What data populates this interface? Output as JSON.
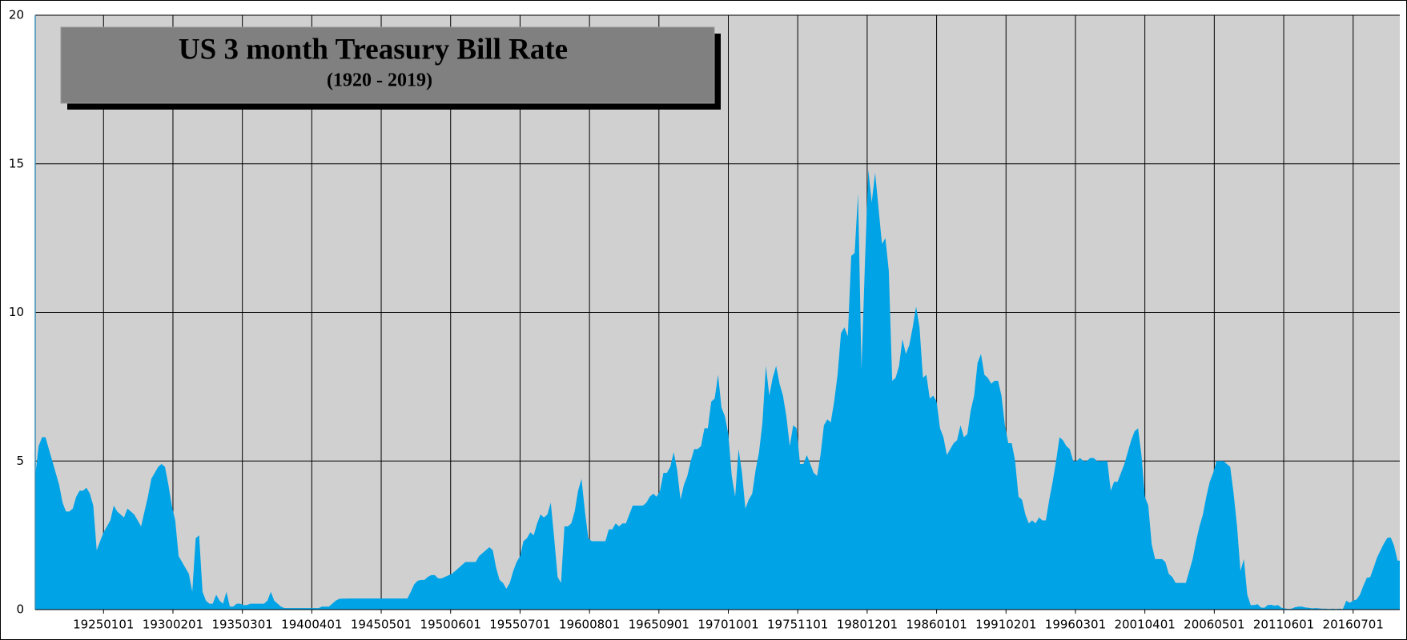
{
  "chart_data": {
    "type": "area",
    "title": "US 3 month Treasury Bill Rate",
    "subtitle": "(1920 - 2019)",
    "color": "#00a3e6",
    "grid": true,
    "xlim": [
      "19200101",
      "20191201"
    ],
    "xticks": [
      "19250101",
      "19300201",
      "19350301",
      "19400401",
      "19450501",
      "19500601",
      "19550701",
      "19600801",
      "19650901",
      "19701001",
      "19751101",
      "19801201",
      "19860101",
      "19910201",
      "19960301",
      "20010401",
      "20060501",
      "20110601",
      "20160701"
    ],
    "ylim": [
      0,
      20
    ],
    "yticks": [
      0,
      5,
      10,
      15,
      20
    ],
    "x": [
      "19200101",
      "19200401",
      "19200701",
      "19201001",
      "19210101",
      "19210401",
      "19210701",
      "19211001",
      "19220101",
      "19220401",
      "19220701",
      "19221001",
      "19230101",
      "19230401",
      "19230701",
      "19231001",
      "19240101",
      "19240401",
      "19240701",
      "19241001",
      "19250101",
      "19250401",
      "19250701",
      "19251001",
      "19260101",
      "19260401",
      "19260701",
      "19261001",
      "19270101",
      "19270401",
      "19270701",
      "19271001",
      "19280101",
      "19280401",
      "19280701",
      "19281001",
      "19290101",
      "19290401",
      "19290701",
      "19291001",
      "19300101",
      "19300401",
      "19300701",
      "19301001",
      "19310101",
      "19310401",
      "19310701",
      "19311001",
      "19320101",
      "19320401",
      "19320701",
      "19321001",
      "19330101",
      "19330401",
      "19330701",
      "19331001",
      "19340101",
      "19340401",
      "19340701",
      "19341001",
      "19350101",
      "19350401",
      "19350701",
      "19351001",
      "19360101",
      "19360401",
      "19360701",
      "19361001",
      "19370101",
      "19370401",
      "19370701",
      "19371001",
      "19380101",
      "19380401",
      "19380701",
      "19381001",
      "19390101",
      "19390401",
      "19390701",
      "19391001",
      "19400101",
      "19400401",
      "19400701",
      "19401001",
      "19410101",
      "19410401",
      "19410701",
      "19411001",
      "19420101",
      "19420401",
      "19420701",
      "19421001",
      "19430101",
      "19430401",
      "19430701",
      "19431001",
      "19440101",
      "19440401",
      "19440701",
      "19441001",
      "19450101",
      "19450401",
      "19450701",
      "19451001",
      "19460101",
      "19460401",
      "19460701",
      "19461001",
      "19470101",
      "19470401",
      "19470701",
      "19471001",
      "19480101",
      "19480401",
      "19480701",
      "19481001",
      "19490101",
      "19490401",
      "19490701",
      "19491001",
      "19500101",
      "19500401",
      "19500701",
      "19501001",
      "19510101",
      "19510401",
      "19510701",
      "19511001",
      "19520101",
      "19520401",
      "19520701",
      "19521001",
      "19530101",
      "19530401",
      "19530701",
      "19531001",
      "19540101",
      "19540401",
      "19540701",
      "19541001",
      "19550101",
      "19550401",
      "19550701",
      "19551001",
      "19560101",
      "19560401",
      "19560701",
      "19561001",
      "19570101",
      "19570401",
      "19570701",
      "19571001",
      "19580101",
      "19580401",
      "19580701",
      "19581001",
      "19590101",
      "19590401",
      "19590701",
      "19591001",
      "19600101",
      "19600401",
      "19600701",
      "19601001",
      "19610101",
      "19610401",
      "19610701",
      "19611001",
      "19620101",
      "19620401",
      "19620701",
      "19621001",
      "19630101",
      "19630401",
      "19630701",
      "19631001",
      "19640101",
      "19640401",
      "19640701",
      "19641001",
      "19650101",
      "19650401",
      "19650701",
      "19651001",
      "19660101",
      "19660401",
      "19660701",
      "19661001",
      "19670101",
      "19670401",
      "19670701",
      "19671001",
      "19680101",
      "19680401",
      "19680701",
      "19681001",
      "19690101",
      "19690401",
      "19690701",
      "19691001",
      "19700101",
      "19700401",
      "19700701",
      "19701001",
      "19710101",
      "19710401",
      "19710701",
      "19711001",
      "19720101",
      "19720401",
      "19720701",
      "19721001",
      "19730101",
      "19730401",
      "19730701",
      "19731001",
      "19740101",
      "19740401",
      "19740701",
      "19741001",
      "19750101",
      "19750401",
      "19750701",
      "19751001",
      "19760101",
      "19760401",
      "19760701",
      "19761001",
      "19770101",
      "19770401",
      "19770701",
      "19771001",
      "19780101",
      "19780401",
      "19780701",
      "19781001",
      "19790101",
      "19790401",
      "19790701",
      "19791001",
      "19800101",
      "19800401",
      "19800701",
      "19801001",
      "19810101",
      "19810401",
      "19810701",
      "19811001",
      "19820101",
      "19820401",
      "19820701",
      "19821001",
      "19830101",
      "19830401",
      "19830701",
      "19831001",
      "19840101",
      "19840401",
      "19840701",
      "19841001",
      "19850101",
      "19850401",
      "19850701",
      "19851001",
      "19860101",
      "19860401",
      "19860701",
      "19861001",
      "19870101",
      "19870401",
      "19870701",
      "19871001",
      "19880101",
      "19880401",
      "19880701",
      "19881001",
      "19890101",
      "19890401",
      "19890701",
      "19891001",
      "19900101",
      "19900401",
      "19900701",
      "19901001",
      "19910101",
      "19910401",
      "19910701",
      "19911001",
      "19920101",
      "19920401",
      "19920701",
      "19921001",
      "19930101",
      "19930401",
      "19930701",
      "19931001",
      "19940101",
      "19940401",
      "19940701",
      "19941001",
      "19950101",
      "19950401",
      "19950701",
      "19951001",
      "19960101",
      "19960401",
      "19960701",
      "19961001",
      "19970101",
      "19970401",
      "19970701",
      "19971001",
      "19980101",
      "19980401",
      "19980701",
      "19981001",
      "19990101",
      "19990401",
      "19990701",
      "19991001",
      "20000101",
      "20000401",
      "20000701",
      "20001001",
      "20010101",
      "20010401",
      "20010701",
      "20011001",
      "20020101",
      "20020401",
      "20020701",
      "20021001",
      "20030101",
      "20030401",
      "20030701",
      "20031001",
      "20040101",
      "20040401",
      "20040701",
      "20041001",
      "20050101",
      "20050401",
      "20050701",
      "20051001",
      "20060101",
      "20060401",
      "20060701",
      "20061001",
      "20070101",
      "20070401",
      "20070701",
      "20071001",
      "20080101",
      "20080401",
      "20080701",
      "20081001",
      "20090101",
      "20090401",
      "20090701",
      "20091001",
      "20100101",
      "20100401",
      "20100701",
      "20101001",
      "20110101",
      "20110401",
      "20110701",
      "20111001",
      "20120101",
      "20120401",
      "20120701",
      "20121001",
      "20130101",
      "20130401",
      "20130701",
      "20131001",
      "20140101",
      "20140401",
      "20140701",
      "20141001",
      "20150101",
      "20150401",
      "20150701",
      "20151001",
      "20160101",
      "20160401",
      "20160701",
      "20161001",
      "20170101",
      "20170401",
      "20170701",
      "20171001",
      "20180101",
      "20180401",
      "20180701",
      "20181001",
      "20190101",
      "20190401",
      "20190701",
      "20191001"
    ],
    "values": [
      4.5,
      5.5,
      5.8,
      5.8,
      5.4,
      5.0,
      4.6,
      4.2,
      3.6,
      3.3,
      3.3,
      3.4,
      3.8,
      4.0,
      4.0,
      4.1,
      3.9,
      3.5,
      2.0,
      2.3,
      2.6,
      2.8,
      3.0,
      3.5,
      3.3,
      3.2,
      3.1,
      3.4,
      3.3,
      3.2,
      3.0,
      2.8,
      3.3,
      3.8,
      4.4,
      4.6,
      4.8,
      4.9,
      4.8,
      4.2,
      3.5,
      3.0,
      1.8,
      1.6,
      1.4,
      1.2,
      0.6,
      2.4,
      2.5,
      0.6,
      0.3,
      0.2,
      0.2,
      0.5,
      0.3,
      0.2,
      0.6,
      0.1,
      0.1,
      0.2,
      0.2,
      0.15,
      0.15,
      0.2,
      0.2,
      0.2,
      0.2,
      0.2,
      0.3,
      0.6,
      0.3,
      0.2,
      0.1,
      0.05,
      0.05,
      0.05,
      0.05,
      0.05,
      0.05,
      0.05,
      0.05,
      0.05,
      0.05,
      0.05,
      0.1,
      0.1,
      0.1,
      0.2,
      0.3,
      0.36,
      0.37,
      0.37,
      0.375,
      0.375,
      0.375,
      0.375,
      0.375,
      0.375,
      0.375,
      0.375,
      0.375,
      0.375,
      0.375,
      0.375,
      0.375,
      0.375,
      0.375,
      0.375,
      0.375,
      0.375,
      0.6,
      0.85,
      0.97,
      1.0,
      1.0,
      1.1,
      1.16,
      1.16,
      1.05,
      1.05,
      1.1,
      1.15,
      1.2,
      1.3,
      1.4,
      1.5,
      1.6,
      1.6,
      1.6,
      1.6,
      1.8,
      1.9,
      2.0,
      2.1,
      2.0,
      1.4,
      1.0,
      0.9,
      0.7,
      0.9,
      1.3,
      1.6,
      1.8,
      2.3,
      2.4,
      2.6,
      2.5,
      2.9,
      3.2,
      3.1,
      3.2,
      3.6,
      2.4,
      1.1,
      0.9,
      2.8,
      2.8,
      2.9,
      3.3,
      4.0,
      4.4,
      3.3,
      2.4,
      2.3,
      2.3,
      2.3,
      2.3,
      2.3,
      2.7,
      2.7,
      2.9,
      2.8,
      2.9,
      2.9,
      3.2,
      3.5,
      3.5,
      3.5,
      3.5,
      3.6,
      3.8,
      3.9,
      3.8,
      4.0,
      4.6,
      4.6,
      4.8,
      5.3,
      4.7,
      3.7,
      4.2,
      4.5,
      5.0,
      5.4,
      5.4,
      5.5,
      6.1,
      6.1,
      7.0,
      7.1,
      7.9,
      6.8,
      6.5,
      5.9,
      4.5,
      3.8,
      5.4,
      4.6,
      3.4,
      3.7,
      3.9,
      4.7,
      5.3,
      6.3,
      8.2,
      7.2,
      7.8,
      8.2,
      7.6,
      7.2,
      6.5,
      5.5,
      6.2,
      6.1,
      4.9,
      4.9,
      5.2,
      4.9,
      4.6,
      4.5,
      5.2,
      6.2,
      6.4,
      6.3,
      7.0,
      7.9,
      9.3,
      9.5,
      9.2,
      11.9,
      12.0,
      14.0,
      8.1,
      11.6,
      14.8,
      13.7,
      14.7,
      13.5,
      12.3,
      12.5,
      11.4,
      7.7,
      7.8,
      8.2,
      9.1,
      8.6,
      8.9,
      9.5,
      10.2,
      9.5,
      7.8,
      7.9,
      7.1,
      7.2,
      7.0,
      6.1,
      5.8,
      5.2,
      5.4,
      5.6,
      5.7,
      6.2,
      5.8,
      5.9,
      6.7,
      7.2,
      8.3,
      8.6,
      7.9,
      7.8,
      7.6,
      7.7,
      7.7,
      7.2,
      6.2,
      5.6,
      5.6,
      5.0,
      3.8,
      3.7,
      3.2,
      2.9,
      3.0,
      2.9,
      3.1,
      3.0,
      3.0,
      3.7,
      4.3,
      5.0,
      5.8,
      5.7,
      5.5,
      5.4,
      5.0,
      5.0,
      5.1,
      5.0,
      5.0,
      5.1,
      5.1,
      5.0,
      5.0,
      5.0,
      5.0,
      4.0,
      4.3,
      4.3,
      4.6,
      4.9,
      5.3,
      5.7,
      6.0,
      6.1,
      5.2,
      3.8,
      3.5,
      2.2,
      1.7,
      1.7,
      1.7,
      1.6,
      1.2,
      1.1,
      0.9,
      0.9,
      0.9,
      0.9,
      1.3,
      1.7,
      2.3,
      2.8,
      3.2,
      3.8,
      4.3,
      4.6,
      5.0,
      5.0,
      5.0,
      4.9,
      4.8,
      3.9,
      2.8,
      1.3,
      1.7,
      0.5,
      0.15,
      0.15,
      0.18,
      0.07,
      0.06,
      0.15,
      0.16,
      0.13,
      0.15,
      0.06,
      0.04,
      0.02,
      0.03,
      0.08,
      0.1,
      0.1,
      0.07,
      0.06,
      0.04,
      0.05,
      0.04,
      0.03,
      0.03,
      0.02,
      0.03,
      0.02,
      0.03,
      0.02,
      0.3,
      0.23,
      0.3,
      0.34,
      0.5,
      0.8,
      1.07,
      1.09,
      1.41,
      1.75,
      1.99,
      2.22,
      2.41,
      2.43,
      2.15,
      1.65
    ]
  }
}
